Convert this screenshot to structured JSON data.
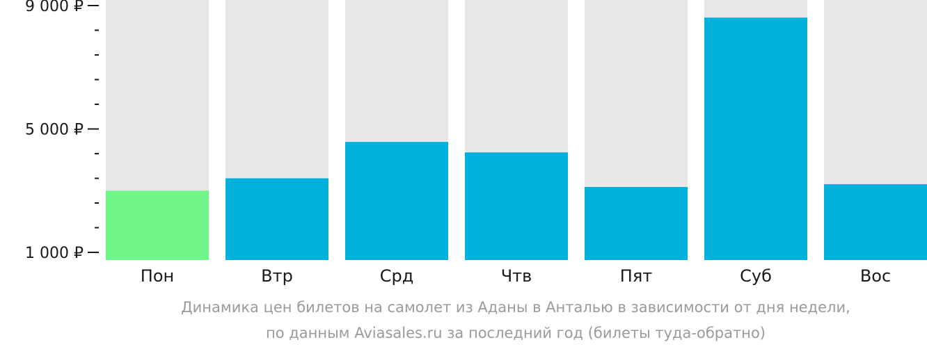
{
  "chart_data": {
    "type": "bar",
    "categories": [
      "Пон",
      "Втр",
      "Срд",
      "Чтв",
      "Пят",
      "Суб",
      "Вос"
    ],
    "values": [
      3000,
      3400,
      4580,
      4240,
      3120,
      8610,
      3210
    ],
    "ylim": [
      1000,
      9000
    ],
    "yticks": [
      {
        "value": 9000,
        "label": "9 000 ₽"
      },
      {
        "value": 5000,
        "label": "5 000 ₽"
      },
      {
        "value": 1000,
        "label": "1 000 ₽"
      }
    ],
    "minor_tick_step": 800,
    "highlight_index": 0,
    "grid": false,
    "legend": "none"
  },
  "colors": {
    "bar": "#00b0dd",
    "highlight": "#6ef585",
    "background_bar": "#e8e8e8",
    "axis": "#1a1a1a",
    "caption": "#9a9a9a"
  },
  "caption": {
    "line1": "Динамика цен билетов на самолет из Аданы в Анталью в зависимости от дня недели,",
    "line2": "по данным Aviasales.ru за последний год (билеты туда-обратно)"
  }
}
